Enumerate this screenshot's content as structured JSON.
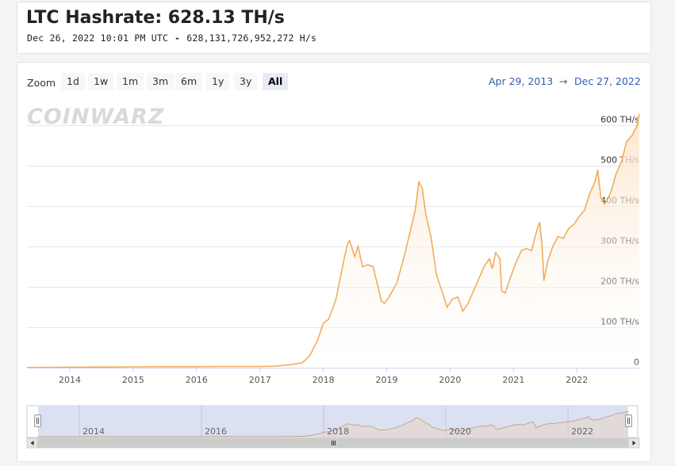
{
  "header": {
    "title": "LTC Hashrate: 628.13 TH/s",
    "timestamp": "Dec 26, 2022 10:01 PM UTC",
    "separator": "-",
    "hashrate_full": "628,131,726,952,272 H/s"
  },
  "toolbar": {
    "zoom_label": "Zoom",
    "buttons": [
      "1d",
      "1w",
      "1m",
      "3m",
      "6m",
      "1y",
      "3y",
      "All"
    ],
    "active": "All",
    "range_from": "Apr 29, 2013",
    "range_sep": "→",
    "range_to": "Dec 27, 2022"
  },
  "watermark": "CoinWarz",
  "colors": {
    "line": "#f0ad5a",
    "area_top": "#fbe3c7",
    "grid": "#e6e6e6",
    "navigator_fill": "#d6dcef",
    "accent": "#335cad"
  },
  "chart_data": {
    "type": "area",
    "title": "LTC Hashrate: 628.13 TH/s",
    "xlabel": "",
    "ylabel": "",
    "x_ticks": [
      "2014",
      "2015",
      "2016",
      "2017",
      "2018",
      "2019",
      "2020",
      "2021",
      "2022"
    ],
    "y_ticks": [
      "0",
      "100 TH/s",
      "200 TH/s",
      "300 TH/s",
      "400 TH/s",
      "500 TH/s",
      "600 TH/s"
    ],
    "ylim": [
      0,
      620
    ],
    "xlim": [
      "2013-04-29",
      "2022-12-27"
    ],
    "grid": true,
    "navigator_ticks": [
      "2014",
      "2016",
      "2018",
      "2020",
      "2022"
    ],
    "series": [
      {
        "values_unit": "TH/s",
        "points": [
          [
            "2013-04-29",
            0.5
          ],
          [
            "2013-10-01",
            1
          ],
          [
            "2014-06-01",
            1.5
          ],
          [
            "2015-01-01",
            2
          ],
          [
            "2015-06-01",
            2.5
          ],
          [
            "2016-01-01",
            2.5
          ],
          [
            "2016-06-01",
            3
          ],
          [
            "2017-01-01",
            3
          ],
          [
            "2017-04-01",
            4
          ],
          [
            "2017-07-01",
            8
          ],
          [
            "2017-09-01",
            12
          ],
          [
            "2017-10-15",
            30
          ],
          [
            "2017-12-01",
            70
          ],
          [
            "2018-01-01",
            110
          ],
          [
            "2018-02-01",
            120
          ],
          [
            "2018-03-15",
            170
          ],
          [
            "2018-05-01",
            270
          ],
          [
            "2018-05-20",
            305
          ],
          [
            "2018-06-01",
            315
          ],
          [
            "2018-07-01",
            275
          ],
          [
            "2018-07-20",
            300
          ],
          [
            "2018-08-15",
            250
          ],
          [
            "2018-09-15",
            255
          ],
          [
            "2018-10-15",
            250
          ],
          [
            "2018-11-15",
            195
          ],
          [
            "2018-12-01",
            165
          ],
          [
            "2018-12-20",
            160
          ],
          [
            "2019-01-15",
            175
          ],
          [
            "2019-03-01",
            210
          ],
          [
            "2019-04-15",
            280
          ],
          [
            "2019-05-15",
            335
          ],
          [
            "2019-06-15",
            390
          ],
          [
            "2019-07-05",
            460
          ],
          [
            "2019-07-25",
            445
          ],
          [
            "2019-08-15",
            380
          ],
          [
            "2019-09-15",
            320
          ],
          [
            "2019-10-15",
            230
          ],
          [
            "2019-11-15",
            190
          ],
          [
            "2019-12-15",
            150
          ],
          [
            "2020-01-15",
            170
          ],
          [
            "2020-02-15",
            175
          ],
          [
            "2020-03-15",
            140
          ],
          [
            "2020-04-15",
            160
          ],
          [
            "2020-05-15",
            190
          ],
          [
            "2020-06-15",
            220
          ],
          [
            "2020-07-15",
            250
          ],
          [
            "2020-08-15",
            270
          ],
          [
            "2020-09-01",
            245
          ],
          [
            "2020-09-20",
            285
          ],
          [
            "2020-10-15",
            270
          ],
          [
            "2020-10-25",
            190
          ],
          [
            "2020-11-15",
            185
          ],
          [
            "2020-12-15",
            225
          ],
          [
            "2021-01-15",
            260
          ],
          [
            "2021-02-15",
            290
          ],
          [
            "2021-03-15",
            295
          ],
          [
            "2021-04-15",
            290
          ],
          [
            "2021-05-15",
            340
          ],
          [
            "2021-06-01",
            360
          ],
          [
            "2021-06-15",
            300
          ],
          [
            "2021-06-25",
            215
          ],
          [
            "2021-07-15",
            260
          ],
          [
            "2021-08-15",
            300
          ],
          [
            "2021-09-15",
            325
          ],
          [
            "2021-10-15",
            320
          ],
          [
            "2021-11-15",
            345
          ],
          [
            "2021-12-15",
            355
          ],
          [
            "2022-01-15",
            375
          ],
          [
            "2022-02-15",
            390
          ],
          [
            "2022-03-15",
            430
          ],
          [
            "2022-04-15",
            460
          ],
          [
            "2022-05-01",
            490
          ],
          [
            "2022-05-20",
            420
          ],
          [
            "2022-06-10",
            405
          ],
          [
            "2022-07-01",
            420
          ],
          [
            "2022-07-20",
            440
          ],
          [
            "2022-08-15",
            480
          ],
          [
            "2022-09-15",
            510
          ],
          [
            "2022-10-15",
            560
          ],
          [
            "2022-11-15",
            575
          ],
          [
            "2022-12-15",
            600
          ],
          [
            "2022-12-26",
            628
          ]
        ]
      }
    ]
  }
}
